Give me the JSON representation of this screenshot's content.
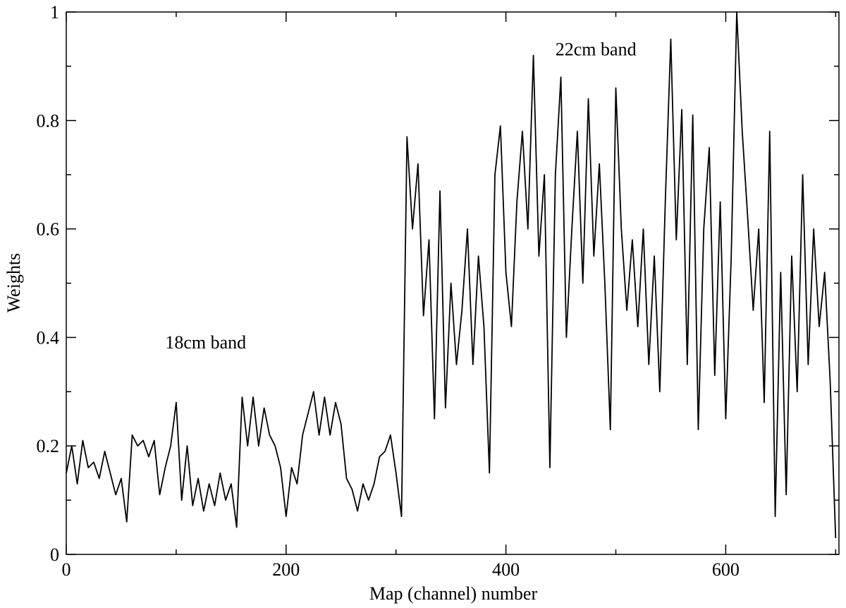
{
  "chart_data": {
    "type": "line",
    "xlabel": "Map (channel) number",
    "ylabel": "Weights",
    "annotations": [
      {
        "text": "18cm band",
        "x": 90,
        "y": 0.38
      },
      {
        "text": "22cm band",
        "x": 445,
        "y": 0.92
      }
    ],
    "xlim": [
      0,
      703
    ],
    "ylim": [
      0,
      1
    ],
    "xticks": [
      0,
      200,
      400,
      600
    ],
    "xminorticks": [
      100,
      300,
      500,
      700
    ],
    "yticks": [
      0,
      0.2,
      0.4,
      0.6,
      0.8,
      1
    ],
    "yminorticks": [
      0.1,
      0.3,
      0.5,
      0.7,
      0.9
    ],
    "color": "#000000",
    "x": [
      0,
      5,
      10,
      15,
      20,
      25,
      30,
      35,
      40,
      45,
      50,
      55,
      60,
      65,
      70,
      75,
      80,
      85,
      90,
      95,
      100,
      105,
      110,
      115,
      120,
      125,
      130,
      135,
      140,
      145,
      150,
      155,
      160,
      165,
      170,
      175,
      180,
      185,
      190,
      195,
      200,
      205,
      210,
      215,
      220,
      225,
      230,
      235,
      240,
      245,
      250,
      255,
      260,
      265,
      270,
      275,
      280,
      285,
      290,
      295,
      300,
      305,
      310,
      315,
      320,
      325,
      330,
      335,
      340,
      345,
      350,
      355,
      360,
      365,
      370,
      375,
      380,
      385,
      390,
      395,
      400,
      405,
      410,
      415,
      420,
      425,
      430,
      435,
      440,
      445,
      450,
      455,
      460,
      465,
      470,
      475,
      480,
      485,
      490,
      495,
      500,
      505,
      510,
      515,
      520,
      525,
      530,
      535,
      540,
      545,
      550,
      555,
      560,
      565,
      570,
      575,
      580,
      585,
      590,
      595,
      600,
      605,
      610,
      615,
      620,
      625,
      630,
      635,
      640,
      645,
      650,
      655,
      660,
      665,
      670,
      675,
      680,
      685,
      690,
      695,
      700
    ],
    "values": [
      0.15,
      0.2,
      0.13,
      0.21,
      0.16,
      0.17,
      0.14,
      0.19,
      0.15,
      0.11,
      0.14,
      0.06,
      0.22,
      0.2,
      0.21,
      0.18,
      0.21,
      0.11,
      0.16,
      0.2,
      0.28,
      0.1,
      0.2,
      0.09,
      0.14,
      0.08,
      0.13,
      0.09,
      0.15,
      0.1,
      0.13,
      0.05,
      0.29,
      0.2,
      0.29,
      0.2,
      0.27,
      0.22,
      0.2,
      0.16,
      0.07,
      0.16,
      0.13,
      0.22,
      0.26,
      0.3,
      0.22,
      0.29,
      0.22,
      0.28,
      0.24,
      0.14,
      0.12,
      0.08,
      0.13,
      0.1,
      0.13,
      0.18,
      0.19,
      0.22,
      0.15,
      0.07,
      0.77,
      0.6,
      0.72,
      0.44,
      0.58,
      0.25,
      0.67,
      0.27,
      0.5,
      0.35,
      0.45,
      0.6,
      0.35,
      0.55,
      0.42,
      0.15,
      0.7,
      0.79,
      0.52,
      0.42,
      0.65,
      0.78,
      0.6,
      0.92,
      0.55,
      0.7,
      0.16,
      0.7,
      0.88,
      0.4,
      0.6,
      0.78,
      0.5,
      0.84,
      0.55,
      0.72,
      0.5,
      0.23,
      0.86,
      0.6,
      0.45,
      0.58,
      0.42,
      0.6,
      0.35,
      0.55,
      0.3,
      0.65,
      0.95,
      0.58,
      0.82,
      0.35,
      0.81,
      0.23,
      0.6,
      0.75,
      0.33,
      0.65,
      0.25,
      0.55,
      1.0,
      0.78,
      0.62,
      0.45,
      0.6,
      0.28,
      0.78,
      0.07,
      0.52,
      0.11,
      0.55,
      0.3,
      0.7,
      0.35,
      0.6,
      0.42,
      0.52,
      0.32,
      0.03
    ]
  }
}
